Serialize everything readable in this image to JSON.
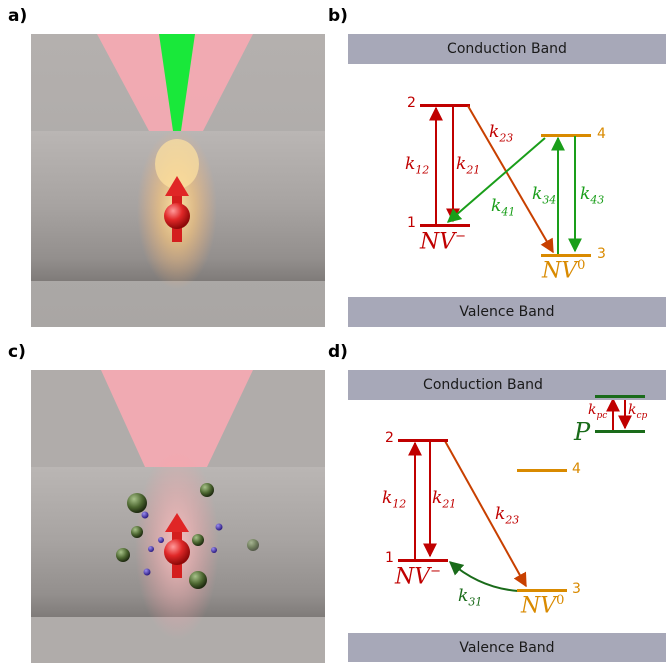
{
  "labels": {
    "a": "a)",
    "b": "b)",
    "c": "c)",
    "d": "d)"
  },
  "colors": {
    "red": "#c00000",
    "orange": "#d98a00",
    "green": "#1a9e1a",
    "dark_green": "#1a6b1a",
    "band": "#a7a8b8"
  },
  "panel_b": {
    "conduction": "Conduction Band",
    "valence": "Valence Band",
    "level_nums": {
      "l1": "1",
      "l2": "2",
      "l3": "3",
      "l4": "4"
    },
    "state_minus": "NV",
    "state_minus_sup": "−",
    "state_zero": "NV",
    "state_zero_sup": "0",
    "rates": {
      "k12": {
        "base": "k",
        "sub": "12"
      },
      "k21": {
        "base": "k",
        "sub": "21"
      },
      "k23": {
        "base": "k",
        "sub": "23"
      },
      "k41": {
        "base": "k",
        "sub": "41"
      },
      "k34": {
        "base": "k",
        "sub": "34"
      },
      "k43": {
        "base": "k",
        "sub": "43"
      }
    }
  },
  "panel_d": {
    "conduction": "Conduction Band",
    "valence": "Valence Band",
    "level_nums": {
      "l1": "1",
      "l2": "2",
      "l3": "3",
      "l4": "4"
    },
    "state_minus": "NV",
    "state_minus_sup": "−",
    "state_zero": "NV",
    "state_zero_sup": "0",
    "trap": "P",
    "rates": {
      "k12": {
        "base": "k",
        "sub": "12"
      },
      "k21": {
        "base": "k",
        "sub": "21"
      },
      "k23": {
        "base": "k",
        "sub": "23"
      },
      "k31": {
        "base": "k",
        "sub": "31"
      },
      "kpc": {
        "base": "k",
        "sub": "pc"
      },
      "kcp": {
        "base": "k",
        "sub": "cp"
      }
    }
  }
}
